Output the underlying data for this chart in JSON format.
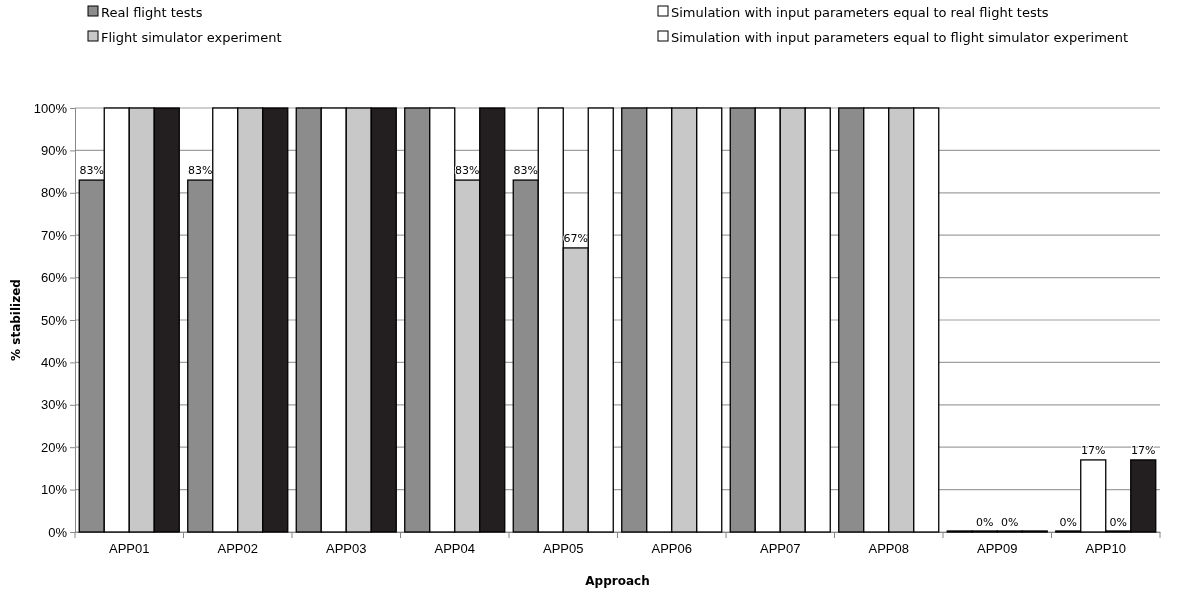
{
  "chart_data": {
    "type": "bar",
    "xlabel": "Approach",
    "ylabel": "% stabilized",
    "categories": [
      "APP01",
      "APP02",
      "APP03",
      "APP04",
      "APP05",
      "APP06",
      "APP07",
      "APP08",
      "APP09",
      "APP10"
    ],
    "series": [
      {
        "name": "Real flight tests",
        "color": "#8c8c8c",
        "values": [
          83,
          83,
          100,
          100,
          83,
          100,
          100,
          100,
          0,
          0
        ],
        "value_labels": [
          "83%",
          "83%",
          null,
          null,
          "83%",
          null,
          null,
          null,
          null,
          "0%"
        ]
      },
      {
        "name": "Simulation with input parameters equal to real flight tests",
        "color": "#ffffff",
        "values": [
          100,
          100,
          100,
          100,
          100,
          100,
          100,
          100,
          0,
          17
        ],
        "value_labels": [
          null,
          null,
          null,
          null,
          null,
          null,
          null,
          null,
          "0%",
          "17%"
        ]
      },
      {
        "name": "Flight simulator experiment",
        "color": "#c8c8c8",
        "values": [
          100,
          100,
          100,
          83,
          67,
          100,
          100,
          100,
          0,
          0
        ],
        "value_labels": [
          null,
          null,
          null,
          "83%",
          "67%",
          null,
          null,
          null,
          "0%",
          "0%"
        ]
      },
      {
        "name": "Simulation with input parameters equal to flight simulator experiment",
        "color": "#ffffff",
        "colors": [
          "#231f20",
          "#231f20",
          "#231f20",
          "#231f20",
          "#ffffff",
          "#ffffff",
          "#ffffff",
          "#ffffff",
          "#ffffff",
          "#231f20"
        ],
        "values": [
          100,
          100,
          100,
          100,
          100,
          100,
          100,
          100,
          0,
          17
        ],
        "value_labels": [
          null,
          null,
          null,
          null,
          null,
          null,
          null,
          null,
          null,
          "17%"
        ]
      }
    ],
    "ylim": [
      0,
      100
    ],
    "yticks": [
      {
        "value": 0,
        "label": "0%"
      },
      {
        "value": 10,
        "label": "10%"
      },
      {
        "value": 20,
        "label": "20%"
      },
      {
        "value": 30,
        "label": "30%"
      },
      {
        "value": 40,
        "label": "40%"
      },
      {
        "value": 50,
        "label": "50%"
      },
      {
        "value": 60,
        "label": "60%"
      },
      {
        "value": 70,
        "label": "70%"
      },
      {
        "value": 80,
        "label": "80%"
      },
      {
        "value": 90,
        "label": "90%"
      },
      {
        "value": 100,
        "label": "100%"
      }
    ],
    "grid": "y",
    "legend": "top"
  }
}
